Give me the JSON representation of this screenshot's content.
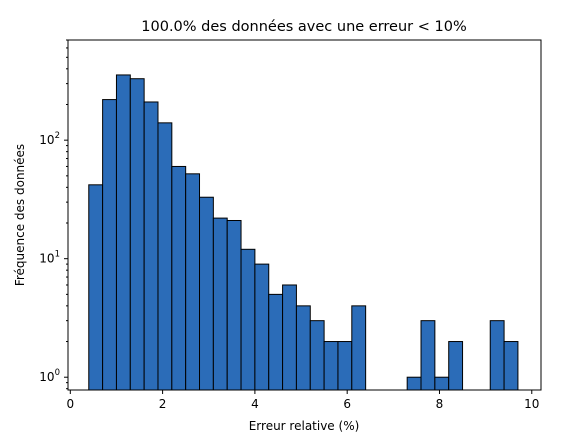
{
  "chart_data": {
    "type": "bar",
    "title": "100.0% des données avec une erreur < 10%",
    "xlabel": "Erreur relative (%)",
    "ylabel": "Fréquence des données",
    "xlim": [
      -0.05,
      10.2
    ],
    "ylim": [
      0.78,
      700
    ],
    "yscale": "log",
    "grid": false,
    "x_ticks": [
      0,
      2,
      4,
      6,
      8,
      10
    ],
    "y_ticks": [
      {
        "value": 1,
        "base": "10",
        "exp": "0"
      },
      {
        "value": 10,
        "base": "10",
        "exp": "1"
      },
      {
        "value": 100,
        "base": "10",
        "exp": "2"
      }
    ],
    "bar_color": "#2b6cb8",
    "edge_color": "#000000",
    "bins": [
      {
        "x0": 0.4,
        "x1": 0.7,
        "count": 42
      },
      {
        "x0": 0.7,
        "x1": 1.0,
        "count": 220
      },
      {
        "x0": 1.0,
        "x1": 1.3,
        "count": 355
      },
      {
        "x0": 1.3,
        "x1": 1.6,
        "count": 330
      },
      {
        "x0": 1.6,
        "x1": 1.9,
        "count": 210
      },
      {
        "x0": 1.9,
        "x1": 2.2,
        "count": 140
      },
      {
        "x0": 2.2,
        "x1": 2.5,
        "count": 60
      },
      {
        "x0": 2.5,
        "x1": 2.8,
        "count": 52
      },
      {
        "x0": 2.8,
        "x1": 3.1,
        "count": 33
      },
      {
        "x0": 3.1,
        "x1": 3.4,
        "count": 22
      },
      {
        "x0": 3.4,
        "x1": 3.7,
        "count": 21
      },
      {
        "x0": 3.7,
        "x1": 4.0,
        "count": 12
      },
      {
        "x0": 4.0,
        "x1": 4.3,
        "count": 9
      },
      {
        "x0": 4.3,
        "x1": 4.6,
        "count": 5
      },
      {
        "x0": 4.6,
        "x1": 4.9,
        "count": 6
      },
      {
        "x0": 4.9,
        "x1": 5.2,
        "count": 4
      },
      {
        "x0": 5.2,
        "x1": 5.5,
        "count": 3
      },
      {
        "x0": 5.5,
        "x1": 5.8,
        "count": 2
      },
      {
        "x0": 5.8,
        "x1": 6.1,
        "count": 2
      },
      {
        "x0": 6.1,
        "x1": 6.4,
        "count": 4
      },
      {
        "x0": 7.3,
        "x1": 7.6,
        "count": 1
      },
      {
        "x0": 7.6,
        "x1": 7.9,
        "count": 3
      },
      {
        "x0": 7.9,
        "x1": 8.2,
        "count": 1
      },
      {
        "x0": 8.2,
        "x1": 8.5,
        "count": 2
      },
      {
        "x0": 9.1,
        "x1": 9.4,
        "count": 3
      },
      {
        "x0": 9.4,
        "x1": 9.7,
        "count": 2
      }
    ]
  }
}
